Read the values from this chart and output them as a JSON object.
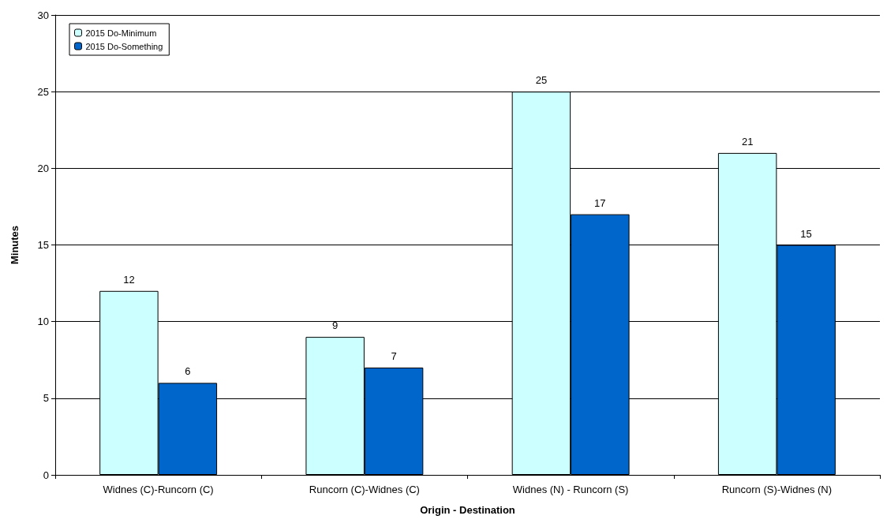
{
  "chart_data": {
    "type": "bar",
    "xlabel": "Origin - Destination",
    "ylabel": "Minutes",
    "categories": [
      "Widnes (C)-Runcorn (C)",
      "Runcorn (C)-Widnes (C)",
      "Widnes (N) - Runcorn (S)",
      "Runcorn (S)-Widnes (N)"
    ],
    "series": [
      {
        "name": "2015 Do-Minimum",
        "color": "#ccffff",
        "values": [
          12,
          9,
          25,
          21
        ]
      },
      {
        "name": "2015 Do-Something",
        "color": "#0066cc",
        "values": [
          6,
          7,
          17,
          15
        ]
      }
    ],
    "ylim": [
      0,
      30
    ],
    "yticks": [
      0,
      5,
      10,
      15,
      20,
      25,
      30
    ],
    "grid": "y",
    "legend": "top left",
    "data_labels": true
  }
}
